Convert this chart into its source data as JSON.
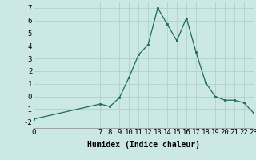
{
  "x": [
    0,
    7,
    8,
    9,
    10,
    11,
    12,
    13,
    14,
    15,
    16,
    17,
    18,
    19,
    20,
    21,
    22,
    23
  ],
  "y": [
    -1.8,
    -0.6,
    -0.8,
    -0.1,
    1.5,
    3.3,
    4.1,
    7.0,
    5.7,
    4.4,
    6.2,
    3.5,
    1.1,
    0.0,
    -0.3,
    -0.3,
    -0.5,
    -1.3
  ],
  "title": "",
  "xlabel": "Humidex (Indice chaleur)",
  "ylabel": "",
  "xlim": [
    0,
    23
  ],
  "ylim": [
    -2.5,
    7.5
  ],
  "yticks": [
    -2,
    -1,
    0,
    1,
    2,
    3,
    4,
    5,
    6,
    7
  ],
  "xticks": [
    0,
    7,
    8,
    9,
    10,
    11,
    12,
    13,
    14,
    15,
    16,
    17,
    18,
    19,
    20,
    21,
    22,
    23
  ],
  "line_color": "#1a6b5a",
  "bg_color": "#cce8e4",
  "grid_color": "#aaccc8",
  "xlabel_fontsize": 7,
  "tick_fontsize": 6.5,
  "marker_size": 2.0,
  "line_width": 0.9
}
